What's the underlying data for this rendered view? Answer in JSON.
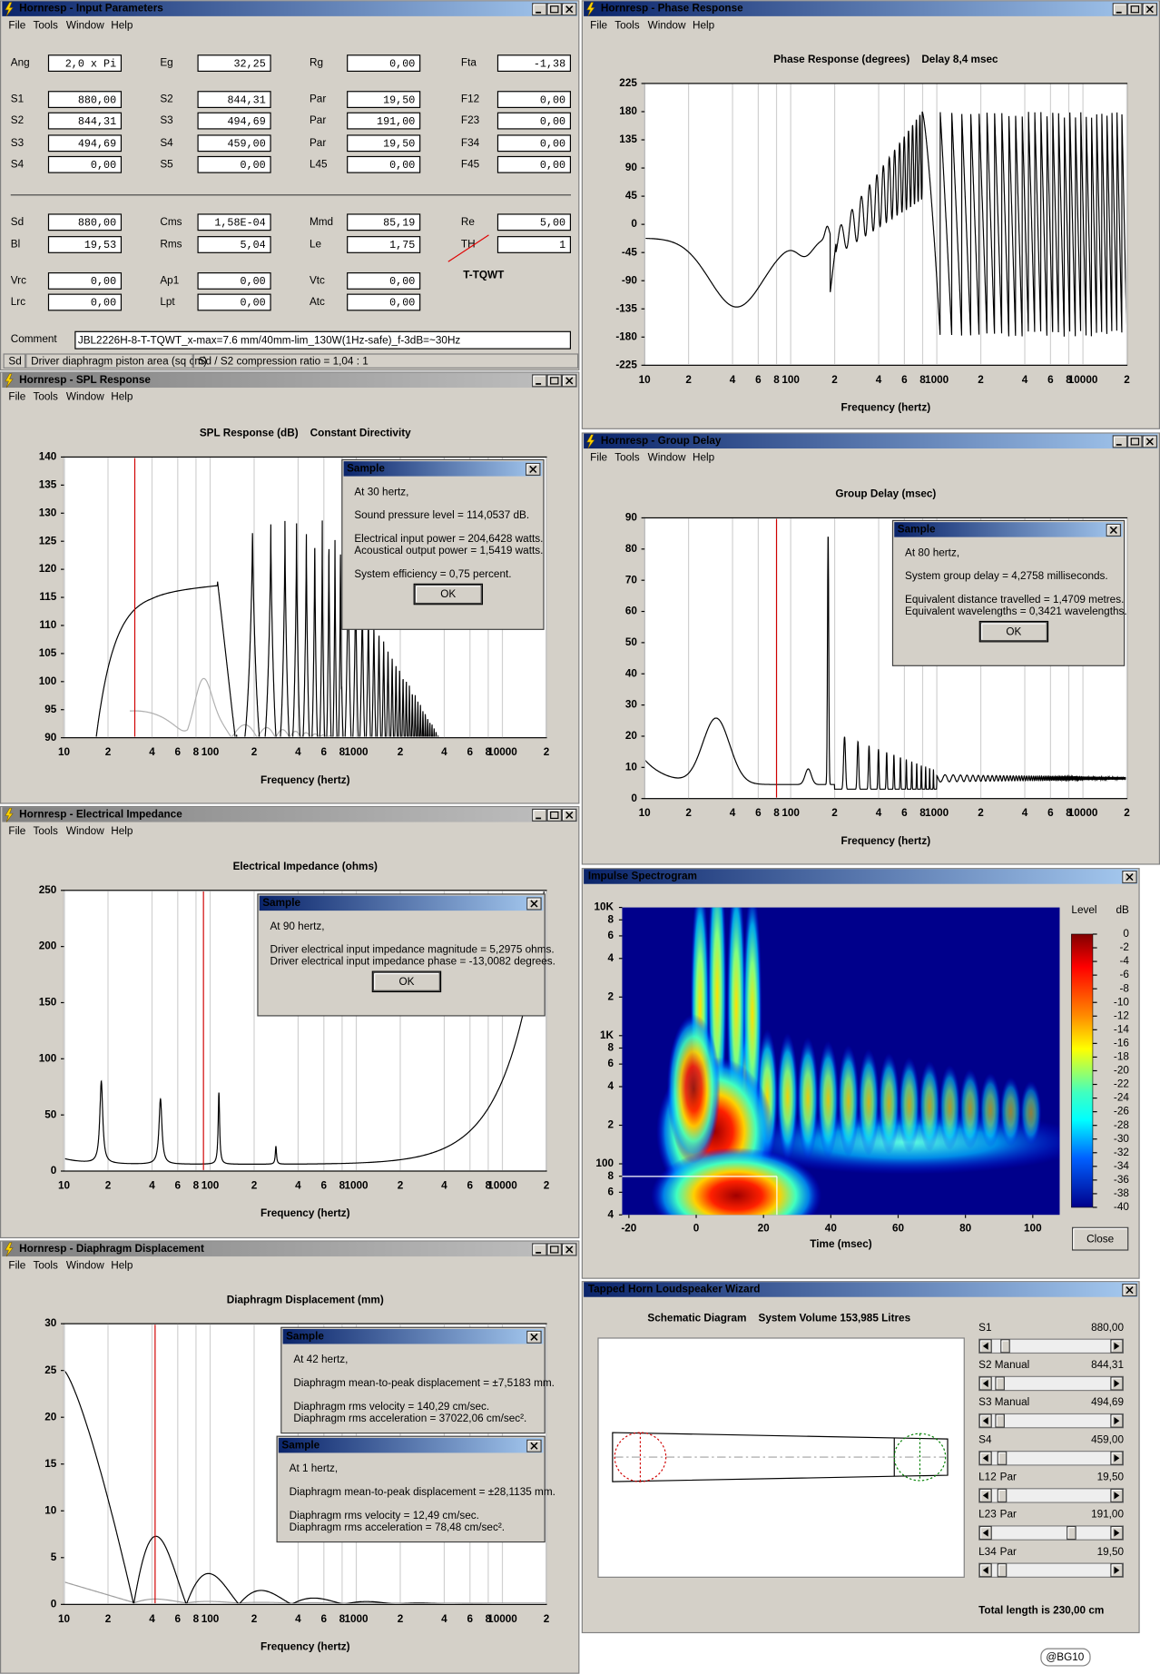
{
  "input_parameters": {
    "title": "Hornresp - Input Parameters",
    "menu": [
      "File",
      "Tools",
      "Window",
      "Help"
    ],
    "rows": [
      [
        {
          "label": "Ang",
          "value": "2,0 x Pi"
        },
        {
          "label": "Eg",
          "value": "32,25"
        },
        {
          "label": "Rg",
          "value": "0,00"
        },
        {
          "label": "Fta",
          "value": "-1,38"
        }
      ],
      [
        {
          "label": "S1",
          "value": "880,00"
        },
        {
          "label": "S2",
          "value": "844,31"
        },
        {
          "label": "Par",
          "value": "19,50"
        },
        {
          "label": "F12",
          "value": "0,00"
        }
      ],
      [
        {
          "label": "S2",
          "value": "844,31"
        },
        {
          "label": "S3",
          "value": "494,69"
        },
        {
          "label": "Par",
          "value": "191,00"
        },
        {
          "label": "F23",
          "value": "0,00"
        }
      ],
      [
        {
          "label": "S3",
          "value": "494,69"
        },
        {
          "label": "S4",
          "value": "459,00"
        },
        {
          "label": "Par",
          "value": "19,50"
        },
        {
          "label": "F34",
          "value": "0,00"
        }
      ],
      [
        {
          "label": "S4",
          "value": "0,00"
        },
        {
          "label": "S5",
          "value": "0,00"
        },
        {
          "label": "L45",
          "value": "0,00"
        },
        {
          "label": "F45",
          "value": "0,00"
        }
      ],
      [
        {
          "label": "Sd",
          "value": "880,00"
        },
        {
          "label": "Cms",
          "value": "1,58E-04"
        },
        {
          "label": "Mmd",
          "value": "85,19"
        },
        {
          "label": "Re",
          "value": "5,00"
        }
      ],
      [
        {
          "label": "Bl",
          "value": "19,53"
        },
        {
          "label": "Rms",
          "value": "5,04"
        },
        {
          "label": "Le",
          "value": "1,75"
        },
        {
          "label": "TH",
          "value": "1"
        }
      ],
      [
        {
          "label": "Vrc",
          "value": "0,00"
        },
        {
          "label": "Ap1",
          "value": "0,00"
        },
        {
          "label": "Vtc",
          "value": "0,00"
        }
      ],
      [
        {
          "label": "Lrc",
          "value": "0,00"
        },
        {
          "label": "Lpt",
          "value": "0,00"
        },
        {
          "label": "Atc",
          "value": "0,00"
        }
      ]
    ],
    "note": "T-TQWT",
    "comment_label": "Comment",
    "comment": "JBL2226H-8-T-TQWT_x-max=7.6 mm/40mm-lim_130W(1Hz-safe)_f-3dB=~30Hz",
    "status": [
      "Sd",
      "Driver diaphragm piston area (sq cm)",
      "Sd / S2 compression ratio = 1,04 : 1"
    ]
  },
  "phase_response": {
    "title": "Hornresp - Phase Response",
    "menu": [
      "File",
      "Tools",
      "Window",
      "Help"
    ],
    "chart": {
      "type": "line",
      "title": "Phase Response (degrees)    Delay 8,4 msec",
      "x_label": "Frequency (hertz)",
      "x_scale": "log",
      "xlim": [
        10,
        20000
      ],
      "xticks": [
        10,
        {
          "value": 20,
          "label": "2"
        },
        {
          "value": 40,
          "label": "4"
        },
        {
          "value": 60,
          "label": "6"
        },
        {
          "value": 80,
          "label": "8"
        },
        100,
        {
          "value": 200,
          "label": "2"
        },
        {
          "value": 400,
          "label": "4"
        },
        {
          "value": 600,
          "label": "6"
        },
        {
          "value": 800,
          "label": "8"
        },
        1000,
        {
          "value": 2000,
          "label": "2"
        },
        {
          "value": 4000,
          "label": "4"
        },
        {
          "value": 6000,
          "label": "6"
        },
        {
          "value": 8000,
          "label": "8"
        },
        10000,
        {
          "value": 20000,
          "label": "2"
        }
      ],
      "ylim": [
        -225,
        225
      ],
      "yticks": [
        225,
        180,
        135,
        90,
        45,
        0,
        -45,
        -90,
        -135,
        -180,
        -225
      ]
    }
  },
  "spl_response": {
    "title": "Hornresp - SPL Response",
    "menu": [
      "File",
      "Tools",
      "Window",
      "Help"
    ],
    "chart": {
      "type": "line",
      "title": "SPL Response (dB)    Constant Directivity",
      "x_label": "Frequency (hertz)",
      "x_scale": "log",
      "xlim": [
        10,
        20000
      ],
      "xticks": [
        10,
        {
          "value": 20,
          "label": "2"
        },
        {
          "value": 40,
          "label": "4"
        },
        {
          "value": 60,
          "label": "6"
        },
        {
          "value": 80,
          "label": "8"
        },
        100,
        {
          "value": 200,
          "label": "2"
        },
        {
          "value": 400,
          "label": "4"
        },
        {
          "value": 600,
          "label": "6"
        },
        {
          "value": 800,
          "label": "8"
        },
        1000,
        {
          "value": 2000,
          "label": "2"
        },
        {
          "value": 4000,
          "label": "4"
        },
        {
          "value": 6000,
          "label": "6"
        },
        {
          "value": 8000,
          "label": "8"
        },
        10000,
        {
          "value": 20000,
          "label": "2"
        }
      ],
      "ylim": [
        90,
        140
      ],
      "yticks": [
        140,
        135,
        130,
        125,
        120,
        115,
        110,
        105,
        100,
        95,
        90
      ]
    },
    "sample": {
      "title": "Sample",
      "lines": [
        [
          "At 30 hertz,"
        ],
        [
          "Sound pressure level = 114,0537 dB."
        ],
        [
          "Electrical input power = 204,6428 watts.",
          "Acoustical output power = 1,5419 watts."
        ],
        [
          "System efficiency = 0,75 percent."
        ]
      ],
      "button": "OK"
    }
  },
  "group_delay": {
    "title": "Hornresp - Group Delay",
    "menu": [
      "File",
      "Tools",
      "Window",
      "Help"
    ],
    "chart": {
      "type": "line",
      "title": "Group Delay (msec)",
      "x_label": "Frequency (hertz)",
      "x_scale": "log",
      "xlim": [
        10,
        20000
      ],
      "xticks": [
        10,
        {
          "value": 20,
          "label": "2"
        },
        {
          "value": 40,
          "label": "4"
        },
        {
          "value": 60,
          "label": "6"
        },
        {
          "value": 80,
          "label": "8"
        },
        100,
        {
          "value": 200,
          "label": "2"
        },
        {
          "value": 400,
          "label": "4"
        },
        {
          "value": 600,
          "label": "6"
        },
        {
          "value": 800,
          "label": "8"
        },
        1000,
        {
          "value": 2000,
          "label": "2"
        },
        {
          "value": 4000,
          "label": "4"
        },
        {
          "value": 6000,
          "label": "6"
        },
        {
          "value": 8000,
          "label": "8"
        },
        10000,
        {
          "value": 20000,
          "label": "2"
        }
      ],
      "ylim": [
        0,
        90
      ],
      "yticks": [
        90,
        80,
        70,
        60,
        50,
        40,
        30,
        20,
        10,
        0
      ]
    },
    "sample": {
      "title": "Sample",
      "lines": [
        [
          "At 80 hertz,"
        ],
        [
          "System group delay = 4,2758 milliseconds."
        ],
        [
          "Equivalent distance travelled = 1,4709 metres.",
          "Equivalent wavelengths = 0,3421 wavelengths."
        ]
      ],
      "button": "OK"
    }
  },
  "electrical_impedance": {
    "title": "Hornresp - Electrical Impedance",
    "menu": [
      "File",
      "Tools",
      "Window",
      "Help"
    ],
    "chart": {
      "type": "line",
      "title": "Electrical Impedance (ohms)",
      "x_label": "Frequency (hertz)",
      "x_scale": "log",
      "xlim": [
        10,
        20000
      ],
      "xticks": [
        10,
        {
          "value": 20,
          "label": "2"
        },
        {
          "value": 40,
          "label": "4"
        },
        {
          "value": 60,
          "label": "6"
        },
        {
          "value": 80,
          "label": "8"
        },
        100,
        {
          "value": 200,
          "label": "2"
        },
        {
          "value": 400,
          "label": "4"
        },
        {
          "value": 600,
          "label": "6"
        },
        {
          "value": 800,
          "label": "8"
        },
        1000,
        {
          "value": 2000,
          "label": "2"
        },
        {
          "value": 4000,
          "label": "4"
        },
        {
          "value": 6000,
          "label": "6"
        },
        {
          "value": 8000,
          "label": "8"
        },
        10000,
        {
          "value": 20000,
          "label": "2"
        }
      ],
      "ylim": [
        0,
        250
      ],
      "yticks": [
        250,
        200,
        150,
        100,
        50,
        0
      ]
    },
    "sample": {
      "title": "Sample",
      "lines": [
        [
          "At 90 hertz,"
        ],
        [
          "Driver electrical input impedance magnitude = 5,2975 ohms.",
          "Driver electrical input impedance phase = -13,0082 degrees."
        ]
      ],
      "button": "OK"
    }
  },
  "diaphragm_displacement": {
    "title": "Hornresp - Diaphragm Displacement",
    "menu": [
      "File",
      "Tools",
      "Window",
      "Help"
    ],
    "chart": {
      "type": "line",
      "title": "Diaphragm Displacement (mm)",
      "x_label": "Frequency (hertz)",
      "x_scale": "log",
      "xlim": [
        10,
        20000
      ],
      "xticks": [
        10,
        {
          "value": 20,
          "label": "2"
        },
        {
          "value": 40,
          "label": "4"
        },
        {
          "value": 60,
          "label": "6"
        },
        {
          "value": 80,
          "label": "8"
        },
        100,
        {
          "value": 200,
          "label": "2"
        },
        {
          "value": 400,
          "label": "4"
        },
        {
          "value": 600,
          "label": "6"
        },
        {
          "value": 800,
          "label": "8"
        },
        1000,
        {
          "value": 2000,
          "label": "2"
        },
        {
          "value": 4000,
          "label": "4"
        },
        {
          "value": 6000,
          "label": "6"
        },
        {
          "value": 8000,
          "label": "8"
        },
        10000,
        {
          "value": 20000,
          "label": "2"
        }
      ],
      "ylim": [
        0,
        30
      ],
      "yticks": [
        30,
        25,
        20,
        15,
        10,
        5,
        0
      ]
    },
    "samples": [
      {
        "title": "Sample",
        "lines": [
          [
            "At 42 hertz,"
          ],
          [
            "Diaphragm mean-to-peak displacement = ±7,5183 mm."
          ],
          [
            "Diaphragm rms velocity = 140,29 cm/sec.",
            "Diaphragm rms acceleration = 37022,06 cm/sec²."
          ]
        ]
      },
      {
        "title": "Sample",
        "lines": [
          [
            "At 1 hertz,"
          ],
          [
            "Diaphragm mean-to-peak displacement = ±28,1135 mm."
          ],
          [
            "Diaphragm rms velocity = 12,49 cm/sec.",
            "Diaphragm rms acceleration = 78,48 cm/sec²."
          ]
        ]
      }
    ]
  },
  "impulse_spectrogram": {
    "title": "Impulse Spectrogram",
    "chart": {
      "type": "heatmap",
      "x_label": "Time (msec)",
      "xlim": [
        -22,
        108
      ],
      "xticks": [
        -20,
        0,
        20,
        40,
        60,
        80,
        100
      ],
      "y_scale": "log",
      "ylim": [
        40,
        10000
      ],
      "yticks": [
        {
          "value": 10000,
          "label": "10K"
        },
        {
          "value": 8000,
          "label": "8"
        },
        {
          "value": 6000,
          "label": "6"
        },
        {
          "value": 4000,
          "label": "4"
        },
        {
          "value": 2000,
          "label": "2"
        },
        {
          "value": 1000,
          "label": "1K"
        },
        {
          "value": 800,
          "label": "8"
        },
        {
          "value": 600,
          "label": "6"
        },
        {
          "value": 400,
          "label": "4"
        },
        {
          "value": 200,
          "label": "2"
        },
        100,
        {
          "value": 80,
          "label": "8"
        },
        {
          "value": 60,
          "label": "6"
        },
        {
          "value": 40,
          "label": "4"
        }
      ],
      "colorbar": {
        "title": "Level",
        "unit": "dB",
        "lim": [
          0,
          -40
        ],
        "ticks": [
          0,
          -2,
          -4,
          -6,
          -8,
          -10,
          -12,
          -14,
          -16,
          -18,
          -20,
          -22,
          -24,
          -26,
          -28,
          -30,
          -32,
          -34,
          -36,
          -38,
          -40
        ]
      }
    },
    "button": "Close"
  },
  "wizard": {
    "title": "Tapped Horn Loudspeaker Wizard",
    "heading": "Schematic Diagram    System Volume 153,985 Litres",
    "sliders": [
      {
        "label": "S1",
        "value": "880,00"
      },
      {
        "label": "S2",
        "mode": "Manual",
        "value": "844,31"
      },
      {
        "label": "S3",
        "mode": "Manual",
        "value": "494,69"
      },
      {
        "label": "S4",
        "value": "459,00"
      },
      {
        "label": "L12",
        "mode": "Par",
        "value": "19,50"
      },
      {
        "label": "L23",
        "mode": "Par",
        "value": "191,00"
      },
      {
        "label": "L34",
        "mode": "Par",
        "value": "19,50"
      }
    ],
    "total": "Total length is 230,00 cm"
  },
  "badge": "@BG10"
}
